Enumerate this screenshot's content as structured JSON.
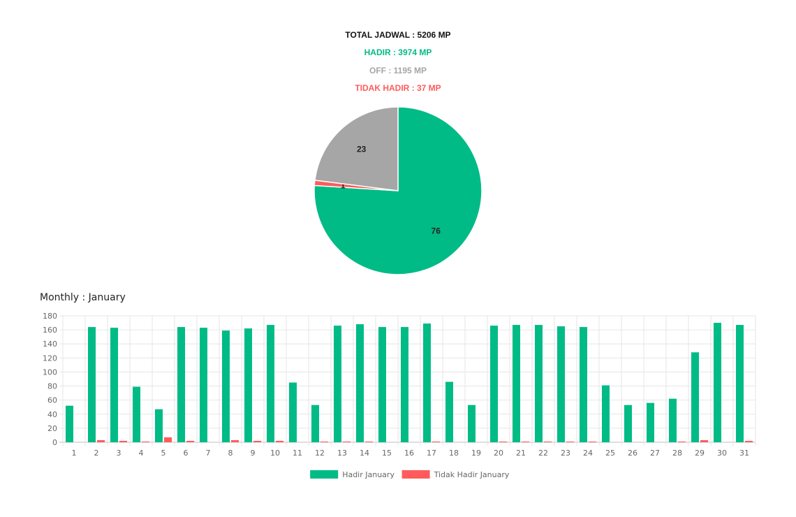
{
  "summary": {
    "total": "TOTAL JADWAL : 5206 MP",
    "hadir": "HADIR : 3974 MP",
    "off": "OFF : 1195 MP",
    "tidak_hadir": "TIDAK HADIR : 37 MP"
  },
  "colors": {
    "hadir": "#00bb86",
    "off": "#a6a6a6",
    "tidak_hadir": "#ff5b5b",
    "total": "#111111"
  },
  "monthly_title": "Monthly : January",
  "chart_data": [
    {
      "type": "pie",
      "slices": [
        {
          "key": "hadir",
          "value": 76,
          "label": "76",
          "color": "#00bb86"
        },
        {
          "key": "tidak_hadir",
          "value": 1,
          "label": "1",
          "color": "#ff5b5b"
        },
        {
          "key": "off",
          "value": 23,
          "label": "23",
          "color": "#a6a6a6"
        }
      ]
    },
    {
      "type": "bar",
      "categories": [
        "1",
        "2",
        "3",
        "4",
        "5",
        "6",
        "7",
        "8",
        "9",
        "10",
        "11",
        "12",
        "13",
        "14",
        "15",
        "16",
        "17",
        "18",
        "19",
        "20",
        "21",
        "22",
        "23",
        "24",
        "25",
        "26",
        "27",
        "28",
        "29",
        "30",
        "31"
      ],
      "series": [
        {
          "name": "Hadir January",
          "color": "#00bb86",
          "values": [
            52,
            164,
            163,
            79,
            47,
            164,
            163,
            159,
            162,
            167,
            85,
            53,
            166,
            168,
            164,
            164,
            169,
            86,
            53,
            166,
            167,
            167,
            165,
            164,
            81,
            53,
            56,
            62,
            128,
            170,
            167
          ]
        },
        {
          "name": "Tidak Hadir January",
          "color": "#ff5b5b",
          "values": [
            0,
            3,
            2,
            1,
            7,
            2,
            0,
            3,
            2,
            2,
            0,
            1,
            1,
            1,
            0,
            0,
            1,
            0,
            0,
            1,
            1,
            1,
            1,
            1,
            0,
            0,
            0,
            1,
            3,
            0,
            2
          ]
        }
      ],
      "yticks": [
        "0",
        "20",
        "40",
        "60",
        "80",
        "100",
        "120",
        "140",
        "160",
        "180"
      ],
      "ylim": [
        0,
        180
      ],
      "grid": true,
      "legend": "bottom"
    }
  ]
}
